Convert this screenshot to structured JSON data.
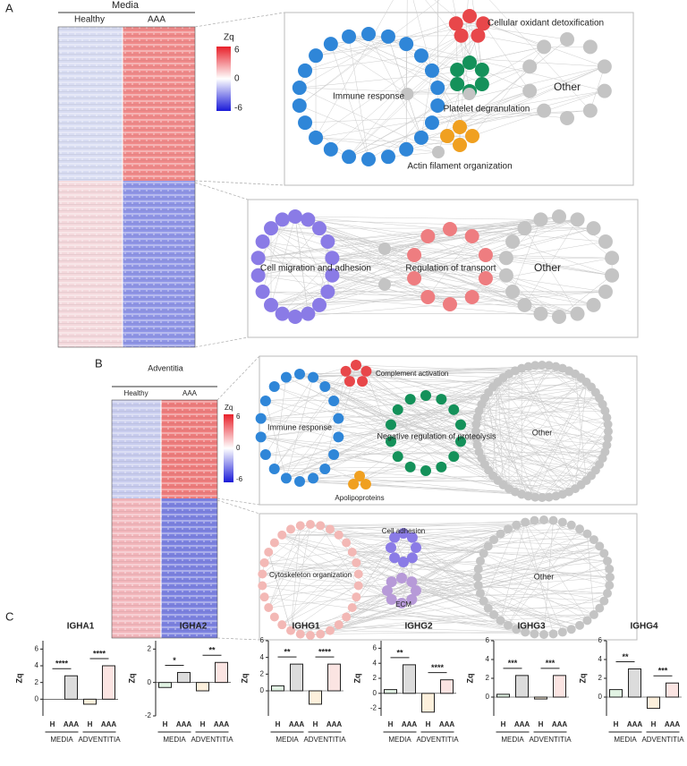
{
  "panel_labels": [
    "A",
    "B",
    "C"
  ],
  "panel_a": {
    "heatmap_title": "Media",
    "groups": [
      "Healthy",
      "AAA"
    ],
    "colorbar": {
      "label": "Zq",
      "ticks": [
        6,
        0,
        -6
      ]
    },
    "network_top": {
      "clusters": [
        "Immune response",
        "Cellular oxidant detoxification",
        "Platelet degranulation",
        "Other",
        "Actin filament organization"
      ]
    },
    "network_bottom": {
      "clusters": [
        "Cell migration and adhesion",
        "Regulation of transport",
        "Other"
      ]
    }
  },
  "panel_b": {
    "heatmap_title": "Adventitia",
    "groups": [
      "Healthy",
      "AAA"
    ],
    "colorbar": {
      "label": "Zq",
      "ticks": [
        6,
        0,
        -6
      ]
    },
    "network_top": {
      "clusters": [
        "Complement activation",
        "Immune response",
        "Negative regulation of proteolysis",
        "Other",
        "Apolipoproteins"
      ]
    },
    "network_bottom": {
      "clusters": [
        "Cell adhesion",
        "Cytoskeleton organization",
        "ECM",
        "Other"
      ]
    }
  },
  "chart_data": [
    {
      "type": "bar",
      "title": "IGHA1",
      "y_label": "Zq",
      "categories": [
        "H",
        "AAA",
        "H",
        "AAA"
      ],
      "groups": [
        "MEDIA",
        "ADVENTITIA"
      ],
      "values": [
        0,
        2.8,
        -0.6,
        4
      ],
      "colors": [
        "#3cb44b",
        "#111111",
        "#f39c12",
        "#e74c3c"
      ],
      "ylim": [
        -2,
        7
      ],
      "yticks": [
        0,
        2,
        4,
        6
      ],
      "significance": [
        "****",
        "****"
      ]
    },
    {
      "type": "bar",
      "title": "IGHA2",
      "y_label": "Zq",
      "categories": [
        "H",
        "AAA",
        "H",
        "AAA"
      ],
      "groups": [
        "MEDIA",
        "ADVENTITIA"
      ],
      "values": [
        -0.3,
        0.6,
        -0.5,
        1.2
      ],
      "colors": [
        "#3cb44b",
        "#111111",
        "#f39c12",
        "#e74c3c"
      ],
      "ylim": [
        -2,
        2.5
      ],
      "yticks": [
        -2,
        0,
        2
      ],
      "significance": [
        "*",
        "**"
      ]
    },
    {
      "type": "bar",
      "title": "IGHG1",
      "y_label": "Zq",
      "categories": [
        "H",
        "AAA",
        "H",
        "AAA"
      ],
      "groups": [
        "MEDIA",
        "ADVENTITIA"
      ],
      "values": [
        0.6,
        3.2,
        -1.6,
        3.2
      ],
      "colors": [
        "#3cb44b",
        "#111111",
        "#f39c12",
        "#e74c3c"
      ],
      "ylim": [
        -3,
        6
      ],
      "yticks": [
        0,
        2,
        4,
        6
      ],
      "significance": [
        "**",
        "****"
      ]
    },
    {
      "type": "bar",
      "title": "IGHG2",
      "y_label": "Zq",
      "categories": [
        "H",
        "AAA",
        "H",
        "AAA"
      ],
      "groups": [
        "MEDIA",
        "ADVENTITIA"
      ],
      "values": [
        0.5,
        3.8,
        -2.5,
        1.8
      ],
      "colors": [
        "#3cb44b",
        "#111111",
        "#f39c12",
        "#e74c3c"
      ],
      "ylim": [
        -3,
        7
      ],
      "yticks": [
        -2,
        0,
        2,
        4,
        6
      ],
      "significance": [
        "**",
        "****"
      ]
    },
    {
      "type": "bar",
      "title": "IGHG3",
      "y_label": "Zq",
      "categories": [
        "H",
        "AAA",
        "H",
        "AAA"
      ],
      "groups": [
        "MEDIA",
        "ADVENTITIA"
      ],
      "values": [
        0.3,
        2.3,
        -0.2,
        2.3
      ],
      "colors": [
        "#3cb44b",
        "#111111",
        "#f39c12",
        "#e74c3c"
      ],
      "ylim": [
        -2,
        6
      ],
      "yticks": [
        0,
        2,
        4,
        6
      ],
      "significance": [
        "***",
        "***"
      ]
    },
    {
      "type": "bar",
      "title": "IGHG4",
      "y_label": "Zq",
      "categories": [
        "H",
        "AAA",
        "H",
        "AAA"
      ],
      "groups": [
        "MEDIA",
        "ADVENTITIA"
      ],
      "values": [
        0.8,
        3,
        -1.2,
        1.5
      ],
      "colors": [
        "#3cb44b",
        "#111111",
        "#f39c12",
        "#e74c3c"
      ],
      "ylim": [
        -2,
        6
      ],
      "yticks": [
        0,
        2,
        4,
        6
      ],
      "significance": [
        "**",
        "***"
      ]
    }
  ]
}
